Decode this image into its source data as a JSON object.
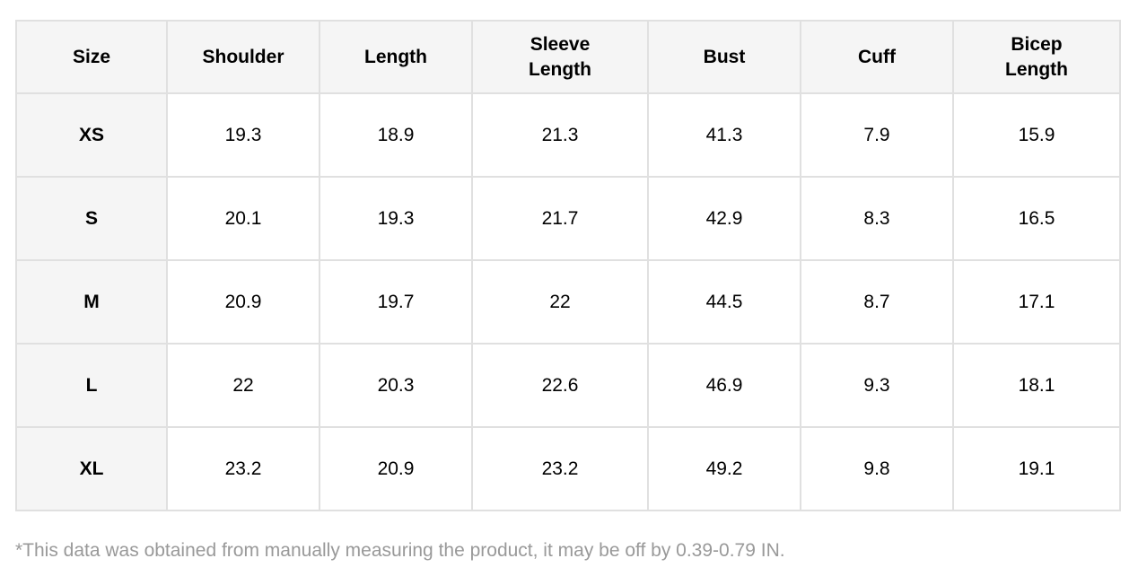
{
  "table": {
    "headers": [
      "Size",
      "Shoulder",
      "Length",
      "Sleeve Length",
      "Bust",
      "Cuff",
      "Bicep Length"
    ],
    "rows": [
      [
        "XS",
        19.3,
        18.9,
        21.3,
        41.3,
        7.9,
        15.9
      ],
      [
        "S",
        20.1,
        19.3,
        21.7,
        42.9,
        8.3,
        16.5
      ],
      [
        "M",
        20.9,
        19.7,
        22,
        44.5,
        8.7,
        17.1
      ],
      [
        "L",
        22,
        20.3,
        22.6,
        46.9,
        9.3,
        18.1
      ],
      [
        "XL",
        23.2,
        20.9,
        23.2,
        49.2,
        9.8,
        19.1
      ]
    ]
  },
  "footnote": "*This data was obtained from manually measuring the product, it may be off by 0.39-0.79 IN."
}
